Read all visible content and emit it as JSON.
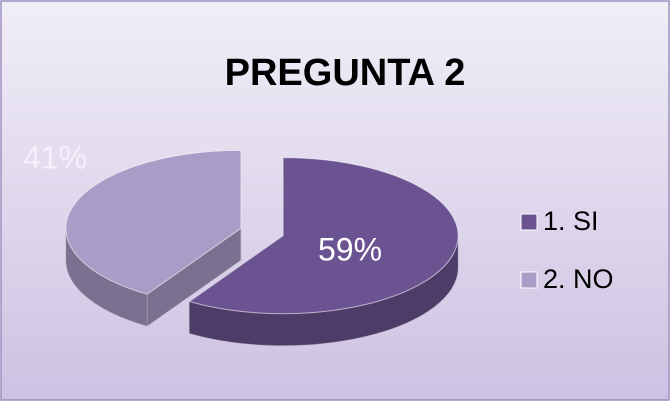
{
  "chart_data": {
    "type": "pie",
    "title": "PREGUNTA 2",
    "categories": [
      "1. SI",
      "2. NO"
    ],
    "values": [
      59,
      41
    ],
    "value_labels": [
      "59%",
      "41%"
    ],
    "colors": [
      "#6b5291",
      "#a99cc6"
    ],
    "legend": "right"
  }
}
